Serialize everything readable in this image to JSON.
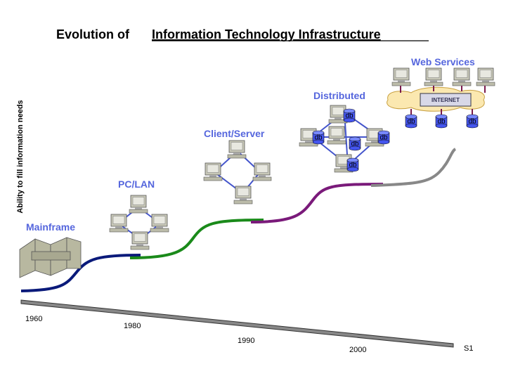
{
  "title": {
    "prefix": "Evolution of",
    "emphasis": "Information Technology Infrastructure"
  },
  "y_axis_label": "Ability to fill information needs",
  "stages": [
    {
      "label": "Mainframe"
    },
    {
      "label": "PC/LAN"
    },
    {
      "label": "Client/Server"
    },
    {
      "label": "Distributed",
      "db_labels": [
        "db",
        "db",
        "db",
        "db",
        "db"
      ]
    },
    {
      "label": "Web Services",
      "network_label": "INTERNET",
      "db_labels": [
        "db",
        "db",
        "db"
      ]
    }
  ],
  "timeline": {
    "years": [
      "1960",
      "1980",
      "1990",
      "2000"
    ],
    "end_label": "S1"
  }
}
